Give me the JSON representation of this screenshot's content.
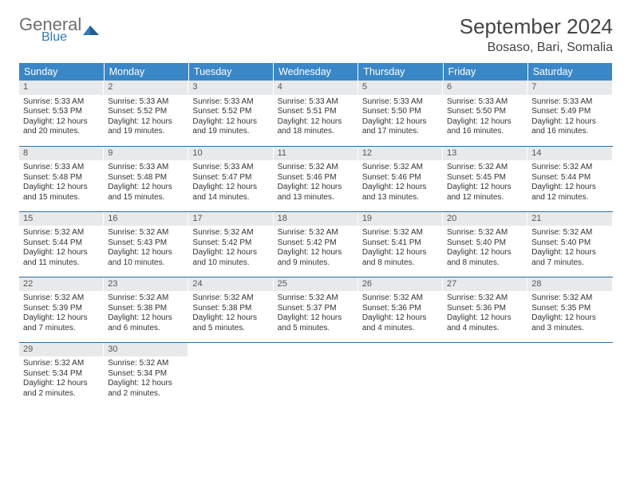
{
  "logo": {
    "part1": "General",
    "part2": "Blue"
  },
  "title": "September 2024",
  "location": "Bosaso, Bari, Somalia",
  "colors": {
    "header_bg": "#3a87c8",
    "daynum_bg": "#e8e9eb",
    "row_border": "#2a6da3",
    "text": "#333333",
    "logo_gray": "#6f6f6f",
    "logo_blue": "#2a7bbf"
  },
  "weekdays": [
    "Sunday",
    "Monday",
    "Tuesday",
    "Wednesday",
    "Thursday",
    "Friday",
    "Saturday"
  ],
  "days": [
    {
      "n": "1",
      "sunrise": "Sunrise: 5:33 AM",
      "sunset": "Sunset: 5:53 PM",
      "day1": "Daylight: 12 hours",
      "day2": "and 20 minutes."
    },
    {
      "n": "2",
      "sunrise": "Sunrise: 5:33 AM",
      "sunset": "Sunset: 5:52 PM",
      "day1": "Daylight: 12 hours",
      "day2": "and 19 minutes."
    },
    {
      "n": "3",
      "sunrise": "Sunrise: 5:33 AM",
      "sunset": "Sunset: 5:52 PM",
      "day1": "Daylight: 12 hours",
      "day2": "and 19 minutes."
    },
    {
      "n": "4",
      "sunrise": "Sunrise: 5:33 AM",
      "sunset": "Sunset: 5:51 PM",
      "day1": "Daylight: 12 hours",
      "day2": "and 18 minutes."
    },
    {
      "n": "5",
      "sunrise": "Sunrise: 5:33 AM",
      "sunset": "Sunset: 5:50 PM",
      "day1": "Daylight: 12 hours",
      "day2": "and 17 minutes."
    },
    {
      "n": "6",
      "sunrise": "Sunrise: 5:33 AM",
      "sunset": "Sunset: 5:50 PM",
      "day1": "Daylight: 12 hours",
      "day2": "and 16 minutes."
    },
    {
      "n": "7",
      "sunrise": "Sunrise: 5:33 AM",
      "sunset": "Sunset: 5:49 PM",
      "day1": "Daylight: 12 hours",
      "day2": "and 16 minutes."
    },
    {
      "n": "8",
      "sunrise": "Sunrise: 5:33 AM",
      "sunset": "Sunset: 5:48 PM",
      "day1": "Daylight: 12 hours",
      "day2": "and 15 minutes."
    },
    {
      "n": "9",
      "sunrise": "Sunrise: 5:33 AM",
      "sunset": "Sunset: 5:48 PM",
      "day1": "Daylight: 12 hours",
      "day2": "and 15 minutes."
    },
    {
      "n": "10",
      "sunrise": "Sunrise: 5:33 AM",
      "sunset": "Sunset: 5:47 PM",
      "day1": "Daylight: 12 hours",
      "day2": "and 14 minutes."
    },
    {
      "n": "11",
      "sunrise": "Sunrise: 5:32 AM",
      "sunset": "Sunset: 5:46 PM",
      "day1": "Daylight: 12 hours",
      "day2": "and 13 minutes."
    },
    {
      "n": "12",
      "sunrise": "Sunrise: 5:32 AM",
      "sunset": "Sunset: 5:46 PM",
      "day1": "Daylight: 12 hours",
      "day2": "and 13 minutes."
    },
    {
      "n": "13",
      "sunrise": "Sunrise: 5:32 AM",
      "sunset": "Sunset: 5:45 PM",
      "day1": "Daylight: 12 hours",
      "day2": "and 12 minutes."
    },
    {
      "n": "14",
      "sunrise": "Sunrise: 5:32 AM",
      "sunset": "Sunset: 5:44 PM",
      "day1": "Daylight: 12 hours",
      "day2": "and 12 minutes."
    },
    {
      "n": "15",
      "sunrise": "Sunrise: 5:32 AM",
      "sunset": "Sunset: 5:44 PM",
      "day1": "Daylight: 12 hours",
      "day2": "and 11 minutes."
    },
    {
      "n": "16",
      "sunrise": "Sunrise: 5:32 AM",
      "sunset": "Sunset: 5:43 PM",
      "day1": "Daylight: 12 hours",
      "day2": "and 10 minutes."
    },
    {
      "n": "17",
      "sunrise": "Sunrise: 5:32 AM",
      "sunset": "Sunset: 5:42 PM",
      "day1": "Daylight: 12 hours",
      "day2": "and 10 minutes."
    },
    {
      "n": "18",
      "sunrise": "Sunrise: 5:32 AM",
      "sunset": "Sunset: 5:42 PM",
      "day1": "Daylight: 12 hours",
      "day2": "and 9 minutes."
    },
    {
      "n": "19",
      "sunrise": "Sunrise: 5:32 AM",
      "sunset": "Sunset: 5:41 PM",
      "day1": "Daylight: 12 hours",
      "day2": "and 8 minutes."
    },
    {
      "n": "20",
      "sunrise": "Sunrise: 5:32 AM",
      "sunset": "Sunset: 5:40 PM",
      "day1": "Daylight: 12 hours",
      "day2": "and 8 minutes."
    },
    {
      "n": "21",
      "sunrise": "Sunrise: 5:32 AM",
      "sunset": "Sunset: 5:40 PM",
      "day1": "Daylight: 12 hours",
      "day2": "and 7 minutes."
    },
    {
      "n": "22",
      "sunrise": "Sunrise: 5:32 AM",
      "sunset": "Sunset: 5:39 PM",
      "day1": "Daylight: 12 hours",
      "day2": "and 7 minutes."
    },
    {
      "n": "23",
      "sunrise": "Sunrise: 5:32 AM",
      "sunset": "Sunset: 5:38 PM",
      "day1": "Daylight: 12 hours",
      "day2": "and 6 minutes."
    },
    {
      "n": "24",
      "sunrise": "Sunrise: 5:32 AM",
      "sunset": "Sunset: 5:38 PM",
      "day1": "Daylight: 12 hours",
      "day2": "and 5 minutes."
    },
    {
      "n": "25",
      "sunrise": "Sunrise: 5:32 AM",
      "sunset": "Sunset: 5:37 PM",
      "day1": "Daylight: 12 hours",
      "day2": "and 5 minutes."
    },
    {
      "n": "26",
      "sunrise": "Sunrise: 5:32 AM",
      "sunset": "Sunset: 5:36 PM",
      "day1": "Daylight: 12 hours",
      "day2": "and 4 minutes."
    },
    {
      "n": "27",
      "sunrise": "Sunrise: 5:32 AM",
      "sunset": "Sunset: 5:36 PM",
      "day1": "Daylight: 12 hours",
      "day2": "and 4 minutes."
    },
    {
      "n": "28",
      "sunrise": "Sunrise: 5:32 AM",
      "sunset": "Sunset: 5:35 PM",
      "day1": "Daylight: 12 hours",
      "day2": "and 3 minutes."
    },
    {
      "n": "29",
      "sunrise": "Sunrise: 5:32 AM",
      "sunset": "Sunset: 5:34 PM",
      "day1": "Daylight: 12 hours",
      "day2": "and 2 minutes."
    },
    {
      "n": "30",
      "sunrise": "Sunrise: 5:32 AM",
      "sunset": "Sunset: 5:34 PM",
      "day1": "Daylight: 12 hours",
      "day2": "and 2 minutes."
    }
  ]
}
